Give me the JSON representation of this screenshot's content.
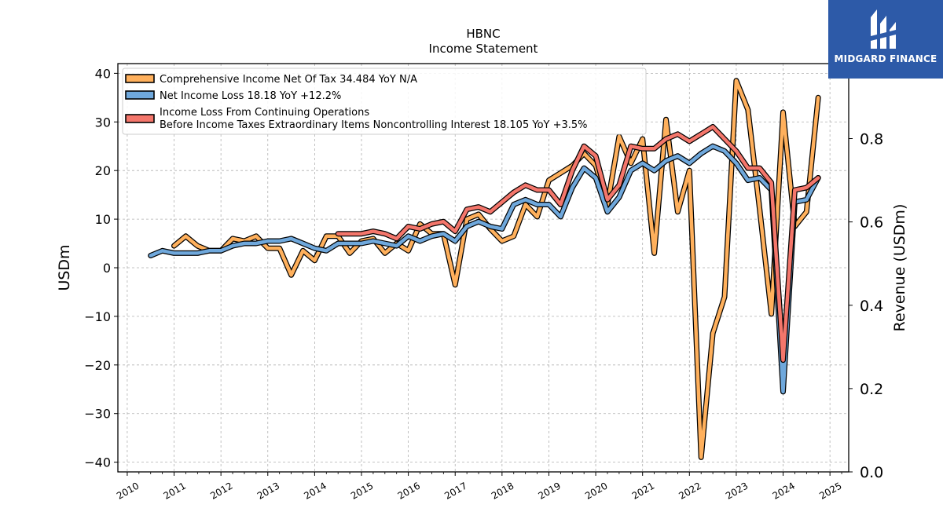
{
  "chart_data": {
    "type": "line",
    "title": "HBNC",
    "subtitle": "Income Statement",
    "ylabel": "USDm",
    "ylabel_right": "Revenue (USDm)",
    "ylim": [
      -42,
      42
    ],
    "ylim_right": [
      0,
      0.98
    ],
    "y_ticks": [
      -40,
      -30,
      -20,
      -10,
      0,
      10,
      20,
      30,
      40
    ],
    "y_ticks_right": [
      0.0,
      0.2,
      0.4,
      0.6,
      0.8
    ],
    "x_ticks": [
      "2010",
      "2011",
      "2012",
      "2013",
      "2014",
      "2015",
      "2016",
      "2017",
      "2018",
      "2019",
      "2020",
      "2021",
      "2022",
      "2023",
      "2024",
      "2025"
    ],
    "xlim": [
      2009.8,
      2025.4
    ],
    "grid": true,
    "legend_position": "top-left",
    "series": [
      {
        "name": "Comprehensive Income Net Of Tax  34.484 YoY N/A",
        "color": "#ffb05c",
        "points": [
          [
            2011.0,
            4.5
          ],
          [
            2011.25,
            6.5
          ],
          [
            2011.5,
            4.5
          ],
          [
            2011.75,
            3.5
          ],
          [
            2012.0,
            3.5
          ],
          [
            2012.25,
            6
          ],
          [
            2012.5,
            5.5
          ],
          [
            2012.75,
            6.5
          ],
          [
            2013.0,
            4
          ],
          [
            2013.25,
            4
          ],
          [
            2013.5,
            -1.5
          ],
          [
            2013.75,
            3.5
          ],
          [
            2014.0,
            1.5
          ],
          [
            2014.25,
            6.5
          ],
          [
            2014.5,
            6.5
          ],
          [
            2014.75,
            3
          ],
          [
            2015.0,
            5.5
          ],
          [
            2015.25,
            6
          ],
          [
            2015.5,
            3
          ],
          [
            2015.75,
            5
          ],
          [
            2016.0,
            3.5
          ],
          [
            2016.25,
            9
          ],
          [
            2016.5,
            7
          ],
          [
            2016.75,
            7
          ],
          [
            2017.0,
            -3.5
          ],
          [
            2017.25,
            10
          ],
          [
            2017.5,
            11
          ],
          [
            2017.75,
            8
          ],
          [
            2018.0,
            5.5
          ],
          [
            2018.25,
            6.5
          ],
          [
            2018.5,
            13
          ],
          [
            2018.75,
            10.5
          ],
          [
            2019.0,
            18
          ],
          [
            2019.25,
            19.5
          ],
          [
            2019.5,
            21
          ],
          [
            2019.75,
            23.5
          ],
          [
            2020.0,
            21
          ],
          [
            2020.25,
            13
          ],
          [
            2020.5,
            27
          ],
          [
            2020.75,
            21.5
          ],
          [
            2021.0,
            26.5
          ],
          [
            2021.25,
            3
          ],
          [
            2021.5,
            30.5
          ],
          [
            2021.75,
            11.5
          ],
          [
            2022.0,
            20
          ],
          [
            2022.25,
            -39
          ],
          [
            2022.5,
            -13.5
          ],
          [
            2022.75,
            -6
          ],
          [
            2023.0,
            38.5
          ],
          [
            2023.25,
            32.5
          ],
          [
            2023.5,
            12
          ],
          [
            2023.75,
            -9.5
          ],
          [
            2024.0,
            32
          ],
          [
            2024.25,
            8.5
          ],
          [
            2024.5,
            11.5
          ],
          [
            2024.75,
            35
          ]
        ]
      },
      {
        "name": "Net Income Loss  18.18 YoY +12.2%",
        "color": "#6fa8dc",
        "points": [
          [
            2010.5,
            2.5
          ],
          [
            2010.75,
            3.5
          ],
          [
            2011.0,
            3
          ],
          [
            2011.25,
            3
          ],
          [
            2011.5,
            3
          ],
          [
            2011.75,
            3.5
          ],
          [
            2012.0,
            3.5
          ],
          [
            2012.25,
            4.5
          ],
          [
            2012.5,
            5
          ],
          [
            2012.75,
            5
          ],
          [
            2013.0,
            5.5
          ],
          [
            2013.25,
            5.5
          ],
          [
            2013.5,
            6
          ],
          [
            2013.75,
            5
          ],
          [
            2014.0,
            4
          ],
          [
            2014.25,
            3.5
          ],
          [
            2014.5,
            5
          ],
          [
            2014.75,
            5
          ],
          [
            2015.0,
            5
          ],
          [
            2015.25,
            5.5
          ],
          [
            2015.5,
            5
          ],
          [
            2015.75,
            4.5
          ],
          [
            2016.0,
            6.5
          ],
          [
            2016.25,
            5.5
          ],
          [
            2016.5,
            6.5
          ],
          [
            2016.75,
            7
          ],
          [
            2017.0,
            5.5
          ],
          [
            2017.25,
            8.5
          ],
          [
            2017.5,
            9.5
          ],
          [
            2017.75,
            8.5
          ],
          [
            2018.0,
            8
          ],
          [
            2018.25,
            13
          ],
          [
            2018.5,
            14
          ],
          [
            2018.75,
            13
          ],
          [
            2019.0,
            13
          ],
          [
            2019.25,
            10.5
          ],
          [
            2019.5,
            16.5
          ],
          [
            2019.75,
            20.5
          ],
          [
            2020.0,
            18.5
          ],
          [
            2020.25,
            11.5
          ],
          [
            2020.5,
            14.5
          ],
          [
            2020.75,
            20
          ],
          [
            2021.0,
            21.5
          ],
          [
            2021.25,
            20
          ],
          [
            2021.5,
            22
          ],
          [
            2021.75,
            23
          ],
          [
            2022.0,
            21.5
          ],
          [
            2022.25,
            23.5
          ],
          [
            2022.5,
            25
          ],
          [
            2022.75,
            24
          ],
          [
            2023.0,
            21.5
          ],
          [
            2023.25,
            18
          ],
          [
            2023.5,
            18.5
          ],
          [
            2023.75,
            16
          ],
          [
            2024.0,
            -25.5
          ],
          [
            2024.25,
            13.5
          ],
          [
            2024.5,
            14
          ],
          [
            2024.75,
            18.5
          ]
        ]
      },
      {
        "name": "Income Loss From Continuing Operations Before Income Taxes Extraordinary Items Noncontrolling Interest  18.105 YoY +3.5%",
        "color": "#f4766b",
        "points": [
          [
            2014.5,
            7
          ],
          [
            2014.75,
            7
          ],
          [
            2015.0,
            7
          ],
          [
            2015.25,
            7.5
          ],
          [
            2015.5,
            7
          ],
          [
            2015.75,
            6
          ],
          [
            2016.0,
            8.5
          ],
          [
            2016.25,
            8
          ],
          [
            2016.5,
            9
          ],
          [
            2016.75,
            9.5
          ],
          [
            2017.0,
            7.5
          ],
          [
            2017.25,
            12
          ],
          [
            2017.5,
            12.5
          ],
          [
            2017.75,
            11.5
          ],
          [
            2018.0,
            13.5
          ],
          [
            2018.25,
            15.5
          ],
          [
            2018.5,
            17
          ],
          [
            2018.75,
            16
          ],
          [
            2019.0,
            16
          ],
          [
            2019.25,
            13
          ],
          [
            2019.5,
            20
          ],
          [
            2019.75,
            25
          ],
          [
            2020.0,
            23
          ],
          [
            2020.25,
            14
          ],
          [
            2020.5,
            17
          ],
          [
            2020.75,
            25
          ],
          [
            2021.0,
            24.5
          ],
          [
            2021.25,
            24.5
          ],
          [
            2021.5,
            26.5
          ],
          [
            2021.75,
            27.5
          ],
          [
            2022.0,
            26
          ],
          [
            2022.25,
            27.5
          ],
          [
            2022.5,
            29
          ],
          [
            2022.75,
            26.5
          ],
          [
            2023.0,
            24
          ],
          [
            2023.25,
            20.5
          ],
          [
            2023.5,
            20.5
          ],
          [
            2023.75,
            17.5
          ],
          [
            2024.0,
            -19
          ],
          [
            2024.25,
            16
          ],
          [
            2024.5,
            16.5
          ],
          [
            2024.75,
            18.5
          ]
        ]
      }
    ]
  },
  "logo": {
    "text": "MIDGARD FINANCE",
    "background": "#2d5aa8"
  }
}
